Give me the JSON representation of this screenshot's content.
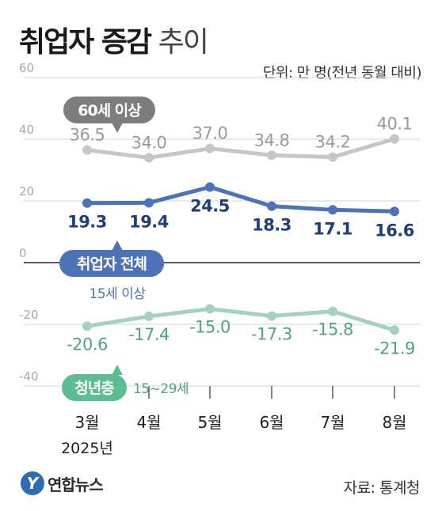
{
  "title": {
    "bold": "취업자 증감",
    "light": "추이"
  },
  "unit": "단위: 만 명(전년 동월 대비)",
  "source": "자료: 통계청",
  "logo": {
    "mark": "Y",
    "text": "연합뉴스"
  },
  "chart_data": {
    "type": "line",
    "categories": [
      "3월",
      "4월",
      "5월",
      "6월",
      "7월",
      "8월"
    ],
    "year_label": "2025년",
    "ylim": [
      -40,
      60
    ],
    "yticks": [
      "60",
      "40",
      "20",
      "0",
      "-20",
      "-40"
    ],
    "series": [
      {
        "name": "60세 이상",
        "values": [
          36.5,
          34.0,
          37.0,
          34.8,
          34.2,
          40.1
        ],
        "labels": [
          "36.5",
          "34.0",
          "37.0",
          "34.8",
          "34.2",
          "40.1"
        ],
        "color": "#c6c6c6",
        "label_color": "#9a9a9a",
        "badge_color": "#7d7d7d"
      },
      {
        "name": "취업자 전체",
        "sublabel": "15세 이상",
        "values": [
          19.3,
          19.4,
          24.5,
          18.3,
          17.1,
          16.6
        ],
        "labels": [
          "19.3",
          "19.4",
          "24.5",
          "18.3",
          "17.1",
          "16.6"
        ],
        "color": "#4d72b8",
        "label_color": "#1e3f7a",
        "badge_color": "#4d72b8"
      },
      {
        "name": "청년층",
        "sublabel": "15~29세",
        "values": [
          -20.6,
          -17.4,
          -15.0,
          -17.3,
          -15.8,
          -21.9
        ],
        "labels": [
          "-20.6",
          "-17.4",
          "-15.0",
          "-17.3",
          "-15.8",
          "-21.9"
        ],
        "color": "#a6d2bd",
        "label_color": "#4da57f",
        "badge_color": "#5dbd92"
      }
    ]
  }
}
